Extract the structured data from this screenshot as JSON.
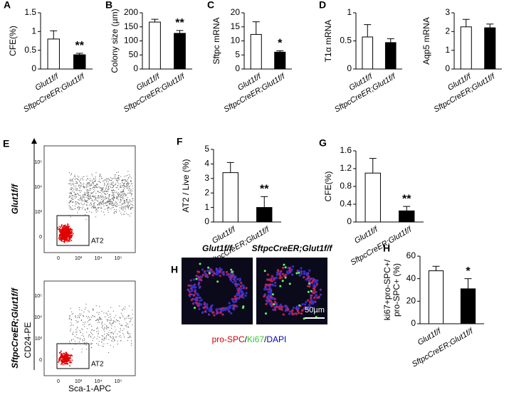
{
  "chart_data": [
    {
      "type": "bar",
      "panel": "A",
      "ylabel": "CFE(%)",
      "categories": [
        "Glut1f/f",
        "SftpcCreER;Glut1f/f"
      ],
      "values": [
        0.8,
        0.38
      ],
      "errors": [
        0.22,
        0.04
      ],
      "colors": [
        "#ffffff",
        "#000000"
      ],
      "ylim": [
        0,
        1.5
      ],
      "yticks": [
        0,
        0.5,
        1,
        1.5
      ],
      "annotation": "**"
    },
    {
      "type": "bar",
      "panel": "B",
      "ylabel": "Colony size (µm)",
      "categories": [
        "Glut1f/f",
        "SftpcCreER;Glut1f/f"
      ],
      "values": [
        167,
        127
      ],
      "errors": [
        10,
        10
      ],
      "colors": [
        "#ffffff",
        "#000000"
      ],
      "ylim": [
        0,
        200
      ],
      "yticks": [
        0,
        50,
        100,
        150,
        200
      ],
      "annotation": "**"
    },
    {
      "type": "bar",
      "panel": "C",
      "ylabel": "Sftpc mRNA",
      "categories": [
        "Glut1f/f",
        "SftpcCreER;Glut1f/f"
      ],
      "values": [
        12.3,
        6
      ],
      "errors": [
        4.5,
        0.5
      ],
      "colors": [
        "#ffffff",
        "#000000"
      ],
      "ylim": [
        0,
        20
      ],
      "yticks": [
        0,
        5,
        10,
        15,
        20
      ],
      "annotation": "*"
    },
    {
      "type": "bar",
      "panel": "D",
      "ylabel": "T1α mRNA",
      "categories": [
        "Glut1f/f",
        "SftpcCreER;Glut1f/f"
      ],
      "values": [
        0.57,
        0.47
      ],
      "errors": [
        0.22,
        0.07
      ],
      "colors": [
        "#ffffff",
        "#000000"
      ],
      "ylim": [
        0,
        1
      ],
      "yticks": [
        0,
        0.5,
        1
      ]
    },
    {
      "type": "bar",
      "ylabel": "Aqp5 mRNA",
      "categories": [
        "Glut1f/f",
        "SftpcCreER;Glut1f/f"
      ],
      "values": [
        2.25,
        2.2
      ],
      "errors": [
        0.4,
        0.2
      ],
      "colors": [
        "#ffffff",
        "#000000"
      ],
      "ylim": [
        0,
        3
      ],
      "yticks": [
        0,
        1,
        2,
        3
      ]
    },
    {
      "type": "bar",
      "panel": "F",
      "ylabel": "AT2 / Live (%)",
      "categories": [
        "Glut1f/f",
        "SftpcCreER;Glut1f/f"
      ],
      "values": [
        3.4,
        1.0
      ],
      "errors": [
        0.7,
        0.75
      ],
      "colors": [
        "#ffffff",
        "#000000"
      ],
      "ylim": [
        0,
        5
      ],
      "yticks": [
        0,
        1,
        2,
        3,
        4,
        5
      ],
      "annotation": "**"
    },
    {
      "type": "bar",
      "panel": "G",
      "ylabel": "CFE(%)",
      "categories": [
        "Glut1f/f",
        "SftpcCreER;Glut1f/f"
      ],
      "values": [
        1.1,
        0.25
      ],
      "errors": [
        0.33,
        0.1
      ],
      "colors": [
        "#ffffff",
        "#000000"
      ],
      "ylim": [
        0,
        1.6
      ],
      "yticks": [
        0,
        0.4,
        0.8,
        1.2,
        1.6
      ],
      "annotation": "**"
    },
    {
      "type": "bar",
      "panel": "H",
      "ylabel": [
        "ki67+pro-SPC+/",
        "pro-SPC+ (%)"
      ],
      "categories": [
        "Glut1f/f",
        "SftpcCreER;Glut1f/f"
      ],
      "values": [
        47,
        31
      ],
      "errors": [
        4,
        9
      ],
      "colors": [
        "#ffffff",
        "#000000"
      ],
      "ylim": [
        0,
        60
      ],
      "yticks": [
        0,
        20,
        40,
        60
      ],
      "annotation": "*"
    }
  ],
  "flow": {
    "panel": "E",
    "plots": [
      {
        "label": "Glut1f/f",
        "gate": "AT2"
      },
      {
        "label": "SftpcCreER;Glut1f/f",
        "gate": "AT2"
      }
    ],
    "xlabel": "Sca-1-APC",
    "ylabel": "CD24-PE",
    "ticks": [
      "0",
      "10³",
      "10⁴",
      "10⁵"
    ]
  },
  "micrographs": {
    "labels": [
      "Glut1f/f",
      "SftpcCreER;Glut1f/f"
    ],
    "scale": "50µm",
    "stain": [
      {
        "text": "pro-SPC",
        "color": "#d00000"
      },
      {
        "text": "/",
        "color": "#000000"
      },
      {
        "text": "Ki67",
        "color": "#33cc33"
      },
      {
        "text": "/",
        "color": "#000000"
      },
      {
        "text": "DAPI",
        "color": "#0000cc"
      }
    ]
  }
}
